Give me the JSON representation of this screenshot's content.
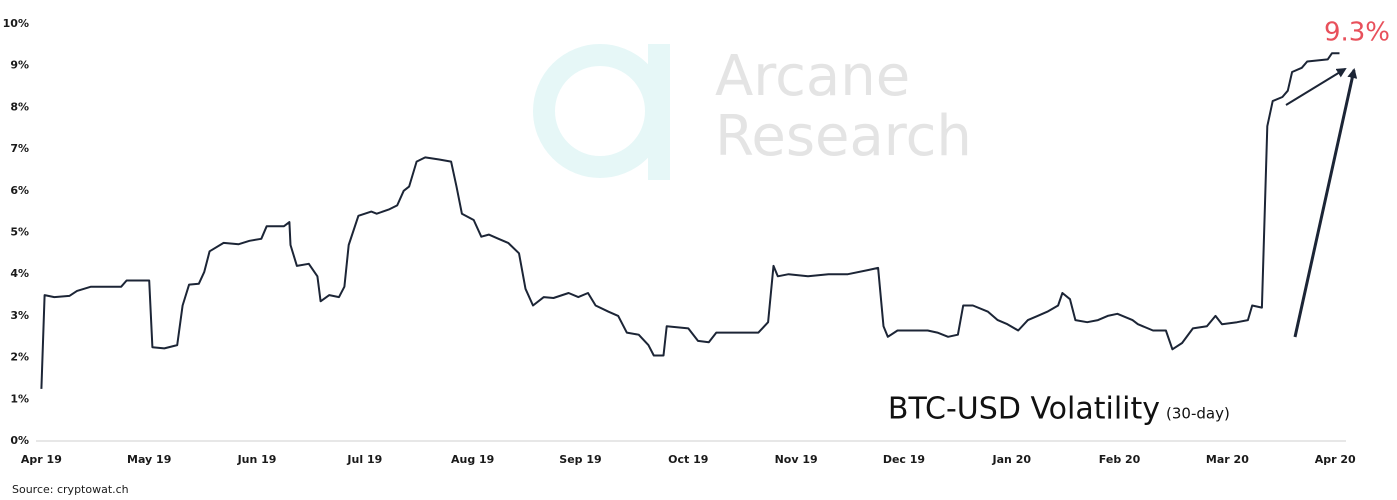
{
  "chart_data": {
    "type": "line",
    "title": "BTC-USD Volatility",
    "subtitle": "(30-day)",
    "annotation": "9.3%",
    "source": "Source: cryptowat.ch",
    "watermark": [
      "Arcane",
      "Research"
    ],
    "color": "#1c2536",
    "annotation_color": "#e8505b",
    "xlim": [
      -0.05,
      12.1
    ],
    "ylim": [
      0,
      10
    ],
    "grid": false,
    "xticks": [
      {
        "value": 0,
        "label": "Apr 19"
      },
      {
        "value": 1,
        "label": "May 19"
      },
      {
        "value": 2,
        "label": "Jun 19"
      },
      {
        "value": 3,
        "label": "Jul 19"
      },
      {
        "value": 4,
        "label": "Aug 19"
      },
      {
        "value": 5,
        "label": "Sep 19"
      },
      {
        "value": 6,
        "label": "Oct 19"
      },
      {
        "value": 7,
        "label": "Nov 19"
      },
      {
        "value": 8,
        "label": "Dec 19"
      },
      {
        "value": 9,
        "label": "Jan 20"
      },
      {
        "value": 10,
        "label": "Feb 20"
      },
      {
        "value": 11,
        "label": "Mar 20"
      },
      {
        "value": 12,
        "label": "Apr 20"
      }
    ],
    "yticks": [
      {
        "value": 0,
        "label": "0%"
      },
      {
        "value": 1,
        "label": "1%"
      },
      {
        "value": 2,
        "label": "2%"
      },
      {
        "value": 3,
        "label": "3%"
      },
      {
        "value": 4,
        "label": "4%"
      },
      {
        "value": 5,
        "label": "5%"
      },
      {
        "value": 6,
        "label": "6%"
      },
      {
        "value": 7,
        "label": "7%"
      },
      {
        "value": 8,
        "label": "8%"
      },
      {
        "value": 9,
        "label": "9%"
      },
      {
        "value": 10,
        "label": "10%"
      }
    ],
    "x": [
      0.0,
      0.03,
      0.12,
      0.26,
      0.33,
      0.46,
      0.74,
      0.79,
      1.0,
      1.03,
      1.14,
      1.26,
      1.31,
      1.37,
      1.46,
      1.51,
      1.56,
      1.69,
      1.83,
      1.93,
      2.04,
      2.09,
      2.25,
      2.3,
      2.31,
      2.37,
      2.48,
      2.56,
      2.59,
      2.67,
      2.76,
      2.81,
      2.85,
      2.94,
      3.06,
      3.11,
      3.22,
      3.3,
      3.36,
      3.41,
      3.48,
      3.56,
      3.69,
      3.8,
      3.85,
      3.9,
      4.01,
      4.08,
      4.15,
      4.24,
      4.33,
      4.43,
      4.49,
      4.56,
      4.66,
      4.75,
      4.89,
      4.98,
      5.07,
      5.14,
      5.26,
      5.35,
      5.43,
      5.54,
      5.63,
      5.68,
      5.77,
      5.8,
      6.0,
      6.09,
      6.19,
      6.26,
      6.37,
      6.65,
      6.74,
      6.79,
      6.83,
      6.93,
      7.11,
      7.3,
      7.48,
      7.67,
      7.76,
      7.81,
      7.85,
      7.94,
      8.22,
      8.31,
      8.41,
      8.5,
      8.55,
      8.64,
      8.78,
      8.87,
      8.96,
      9.06,
      9.15,
      9.24,
      9.33,
      9.43,
      9.47,
      9.54,
      9.59,
      9.7,
      9.8,
      9.89,
      9.98,
      10.12,
      10.17,
      10.31,
      10.43,
      10.49,
      10.58,
      10.68,
      10.81,
      10.89,
      10.95,
      11.09,
      11.19,
      11.23,
      11.32,
      11.37,
      11.42,
      11.51,
      11.56,
      11.6,
      11.69,
      11.74,
      11.93,
      11.97,
      12.04
    ],
    "values": [
      1.25,
      3.5,
      3.45,
      3.48,
      3.6,
      3.7,
      3.7,
      3.85,
      3.85,
      2.25,
      2.22,
      2.3,
      3.25,
      3.75,
      3.77,
      4.05,
      4.55,
      4.75,
      4.72,
      4.8,
      4.85,
      5.15,
      5.15,
      5.25,
      4.7,
      4.2,
      4.25,
      3.95,
      3.35,
      3.5,
      3.45,
      3.7,
      4.7,
      5.4,
      5.5,
      5.45,
      5.55,
      5.65,
      6.0,
      6.1,
      6.7,
      6.8,
      6.75,
      6.7,
      6.1,
      5.45,
      5.3,
      4.9,
      4.95,
      4.85,
      4.75,
      4.5,
      3.65,
      3.25,
      3.45,
      3.43,
      3.55,
      3.45,
      3.55,
      3.25,
      3.1,
      3.0,
      2.6,
      2.55,
      2.3,
      2.05,
      2.05,
      2.75,
      2.7,
      2.4,
      2.37,
      2.6,
      2.6,
      2.6,
      2.85,
      4.2,
      3.95,
      4.0,
      3.95,
      4.0,
      4.0,
      4.1,
      4.15,
      2.75,
      2.5,
      2.65,
      2.65,
      2.6,
      2.5,
      2.55,
      3.25,
      3.25,
      3.1,
      2.9,
      2.8,
      2.65,
      2.9,
      3.0,
      3.1,
      3.25,
      3.55,
      3.4,
      2.9,
      2.85,
      2.9,
      3.0,
      3.05,
      2.9,
      2.8,
      2.65,
      2.65,
      2.2,
      2.35,
      2.7,
      2.75,
      3.0,
      2.8,
      2.85,
      2.9,
      3.25,
      3.2,
      7.55,
      8.15,
      8.25,
      8.4,
      8.85,
      8.95,
      9.1,
      9.15,
      9.3,
      9.3
    ]
  }
}
